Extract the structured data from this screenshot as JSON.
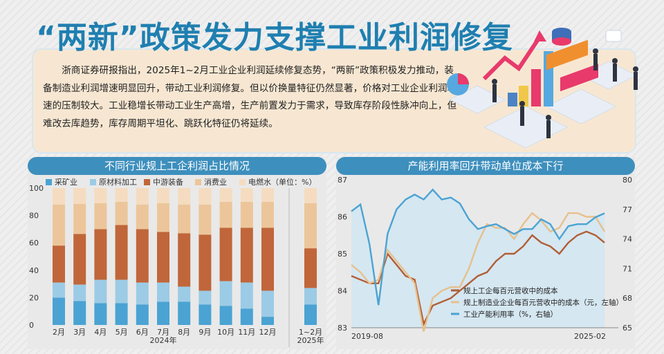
{
  "header": {
    "title": "“两新”政策发力支撑工业利润修复",
    "intro": "浙商证券研报指出，2025年1~2月工业企业利润延续修复态势，“两新”政策积极发力推动，装备制造业利润增速明显回升，带动工业利润修复。但以价换量特征仍然显著，价格对工业企业利润增速的压制较大。工业稳增长带动工业生产高增，生产前置发力于需求，导致库存阶段性脉冲向上，但难改去库趋势，库存周期平坦化、跳跃化特征仍将延续。"
  },
  "colors": {
    "mining": "#4aa3d3",
    "raw": "#9ccbe6",
    "equipment": "#c0663a",
    "consumer": "#ecc69a",
    "utility": "#f5dcc0",
    "line_dark": "#b15d35",
    "line_light": "#e7c08d",
    "line_blue": "#4aa3d3",
    "area_fill": "#cfe6f3"
  },
  "chart_data": [
    {
      "type": "bar",
      "title": "不同行业规上工企利润占比情况",
      "unit_note": "（单位：%）",
      "categories": [
        "2月",
        "3月",
        "4月",
        "5月",
        "6月",
        "7月",
        "8月",
        "9月",
        "10月",
        "11月",
        "12月",
        "1~2月"
      ],
      "group_labels": [
        "2024年",
        "2025年"
      ],
      "ylim": [
        0,
        100
      ],
      "yticks": [
        0,
        20,
        40,
        60,
        80,
        100
      ],
      "series": [
        {
          "name": "采矿业",
          "values": [
            20,
            17.5,
            16,
            16,
            15,
            17,
            17,
            15,
            14,
            12,
            6,
            15
          ]
        },
        {
          "name": "原材料加工",
          "values": [
            11,
            12,
            17,
            17,
            16,
            14,
            11,
            10,
            18,
            19,
            19,
            12
          ]
        },
        {
          "name": "中游装备",
          "values": [
            27,
            37,
            37,
            40,
            39,
            37,
            39,
            41,
            39,
            40,
            46,
            29
          ]
        },
        {
          "name": "消费业",
          "values": [
            30,
            22,
            19,
            17,
            18,
            21,
            21,
            22,
            19,
            19,
            19,
            33
          ]
        },
        {
          "name": "电燃水",
          "values": [
            12,
            11.5,
            11,
            10,
            12,
            11,
            12,
            12,
            10,
            10,
            10,
            11
          ]
        }
      ]
    },
    {
      "type": "line",
      "title": "产能利用率回升带动单位成本下行",
      "x_labels": [
        "2019-08",
        "2025-02"
      ],
      "left_axis": {
        "ylim": [
          83,
          87
        ],
        "ticks": [
          83,
          84,
          85,
          86,
          87
        ]
      },
      "right_axis": {
        "ylim": [
          65,
          80
        ],
        "ticks": [
          65,
          68,
          71,
          74,
          77,
          80
        ]
      },
      "series": [
        {
          "name": "规上工企每百元营收中的成本",
          "axis": "left",
          "values": [
            84.4,
            84.3,
            84.2,
            84.2,
            85,
            84.7,
            84.4,
            84.3,
            83.1,
            83.6,
            83.7,
            83.8,
            84,
            84.2,
            84.4,
            84.5,
            84.8,
            85,
            85,
            85.2,
            85.5,
            85.3,
            85.2,
            85,
            85.3,
            85.5,
            85.6,
            85.5,
            85.3
          ]
        },
        {
          "name": "规上制造业企业每百元营收中的成本（元，左轴）",
          "axis": "left",
          "values": [
            84.7,
            84.5,
            84.2,
            84.3,
            85.1,
            84.8,
            84.5,
            84.2,
            82.9,
            83.8,
            84,
            84.1,
            84.1,
            84.6,
            85.3,
            85.8,
            85.7,
            85.7,
            85.4,
            85.8,
            86.1,
            85.9,
            85.6,
            85.7,
            86.1,
            86.1,
            86,
            86,
            85.6
          ]
        },
        {
          "name": "工业产能利用率（%，右轴）",
          "axis": "right",
          "values": [
            76.8,
            77.5,
            73.5,
            67.3,
            74.5,
            77,
            78,
            78.5,
            78,
            79,
            78,
            78.2,
            77.6,
            76,
            75,
            75.3,
            75.5,
            75,
            74.5,
            75,
            75,
            76,
            75.5,
            74,
            75.3,
            75.5,
            75.5,
            76.2,
            76.6
          ]
        }
      ]
    }
  ]
}
